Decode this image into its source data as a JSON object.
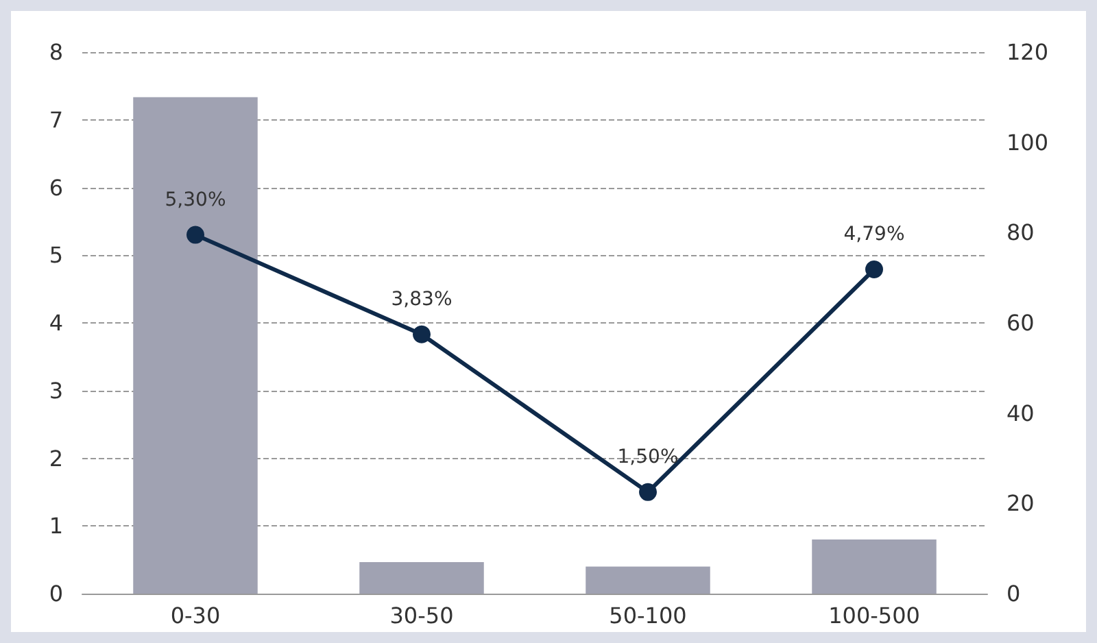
{
  "chart_data": {
    "type": "bar",
    "categories": [
      "0-30",
      "30-50",
      "50-100",
      "100-500"
    ],
    "series": [
      {
        "axis": "y2",
        "color": "#a0a2b2",
        "values": [
          110,
          7,
          6,
          12
        ]
      },
      {
        "type": "line",
        "axis": "y",
        "color": "#0f2a4a",
        "values": [
          5.3,
          3.83,
          1.5,
          4.79
        ],
        "value_labels": [
          "5,30%",
          "3,83%",
          "1,50%",
          "4,79%"
        ]
      }
    ],
    "ylim": [
      0,
      8
    ],
    "yticks": [
      0,
      1,
      2,
      3,
      4,
      5,
      6,
      7,
      8
    ],
    "y2lim": [
      0,
      120
    ],
    "y2ticks": [
      0,
      20,
      40,
      60,
      80,
      100,
      120
    ],
    "grid": "y",
    "marker": "circle",
    "line_style": "solid"
  }
}
